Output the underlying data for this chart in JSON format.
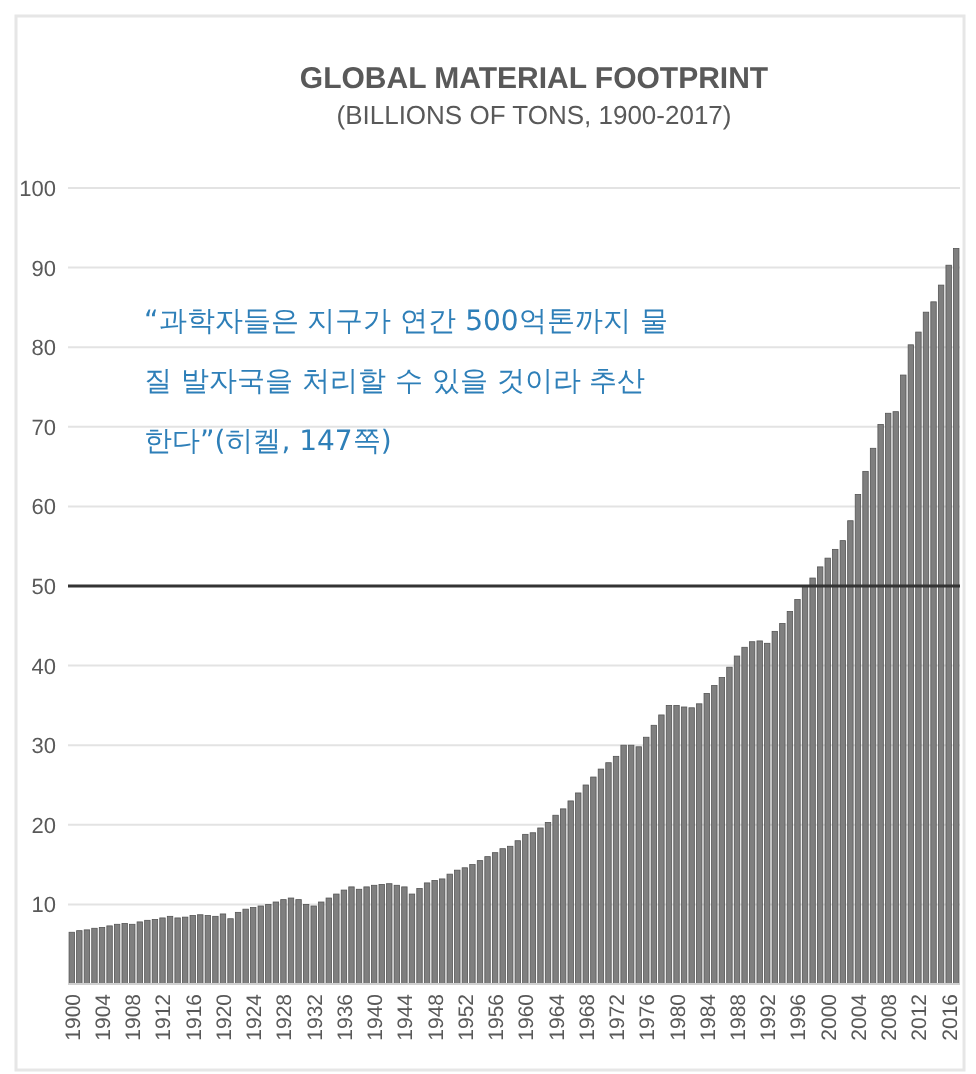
{
  "chart_data": {
    "type": "bar",
    "title": "GLOBAL MATERIAL FOOTPRINT",
    "subtitle": "(BILLIONS OF TONS, 1900-2017)",
    "annotations": [
      "“과학자들은 지구가 연간 500억톤까지 물질 발자국을 처리할 수 있을 것이라 추산한다”(히켈, 147쪽)"
    ],
    "x": [
      1900,
      1901,
      1902,
      1903,
      1904,
      1905,
      1906,
      1907,
      1908,
      1909,
      1910,
      1911,
      1912,
      1913,
      1914,
      1915,
      1916,
      1917,
      1918,
      1919,
      1920,
      1921,
      1922,
      1923,
      1924,
      1925,
      1926,
      1927,
      1928,
      1929,
      1930,
      1931,
      1932,
      1933,
      1934,
      1935,
      1936,
      1937,
      1938,
      1939,
      1940,
      1941,
      1942,
      1943,
      1944,
      1945,
      1946,
      1947,
      1948,
      1949,
      1950,
      1951,
      1952,
      1953,
      1954,
      1955,
      1956,
      1957,
      1958,
      1959,
      1960,
      1961,
      1962,
      1963,
      1964,
      1965,
      1966,
      1967,
      1968,
      1969,
      1970,
      1971,
      1972,
      1973,
      1974,
      1975,
      1976,
      1977,
      1978,
      1979,
      1980,
      1981,
      1982,
      1983,
      1984,
      1985,
      1986,
      1987,
      1988,
      1989,
      1990,
      1991,
      1992,
      1993,
      1994,
      1995,
      1996,
      1997,
      1998,
      1999,
      2000,
      2001,
      2002,
      2003,
      2004,
      2005,
      2006,
      2007,
      2008,
      2009,
      2010,
      2011,
      2012,
      2013,
      2014,
      2015,
      2016,
      2017
    ],
    "values": [
      6.5,
      6.7,
      6.8,
      7.0,
      7.1,
      7.3,
      7.5,
      7.6,
      7.5,
      7.8,
      8.0,
      8.1,
      8.3,
      8.5,
      8.3,
      8.4,
      8.6,
      8.7,
      8.6,
      8.5,
      8.8,
      8.2,
      9.0,
      9.4,
      9.6,
      9.8,
      10.0,
      10.3,
      10.6,
      10.8,
      10.6,
      10.0,
      9.8,
      10.3,
      10.8,
      11.3,
      11.8,
      12.2,
      11.9,
      12.2,
      12.4,
      12.5,
      12.6,
      12.4,
      12.2,
      11.3,
      12.0,
      12.7,
      13.0,
      13.2,
      13.8,
      14.3,
      14.6,
      15.0,
      15.5,
      16.0,
      16.5,
      17.0,
      17.3,
      18.0,
      18.8,
      19.0,
      19.6,
      20.3,
      21.2,
      22.0,
      23.0,
      24.0,
      25.0,
      26.0,
      27.0,
      27.8,
      28.6,
      30.0,
      30.0,
      29.8,
      31.0,
      32.5,
      33.8,
      35.0,
      35.0,
      34.8,
      34.7,
      35.2,
      36.5,
      37.5,
      38.5,
      39.8,
      41.2,
      42.3,
      43.0,
      43.1,
      42.8,
      44.3,
      45.3,
      46.8,
      48.3,
      50.0,
      51.0,
      52.4,
      53.5,
      54.6,
      55.7,
      58.2,
      61.5,
      64.4,
      67.3,
      70.3,
      71.7,
      71.9,
      76.5,
      80.3,
      81.9,
      84.4,
      85.7,
      87.8,
      90.3,
      92.4
    ],
    "color": "#7f7f7f",
    "xlim": [
      1899.5,
      2017.5
    ],
    "xticks": [
      1900,
      1904,
      1908,
      1912,
      1916,
      1920,
      1924,
      1928,
      1932,
      1936,
      1940,
      1944,
      1948,
      1952,
      1956,
      1960,
      1964,
      1968,
      1972,
      1976,
      1980,
      1984,
      1988,
      1992,
      1996,
      2000,
      2004,
      2008,
      2012,
      2016
    ],
    "ylim": [
      0,
      100
    ],
    "yticks": [
      10,
      20,
      30,
      40,
      50,
      60,
      70,
      80,
      90,
      100
    ],
    "grid": "y",
    "ref_lines": [
      {
        "axis": "y",
        "value": 50,
        "color": "#333333"
      }
    ]
  }
}
